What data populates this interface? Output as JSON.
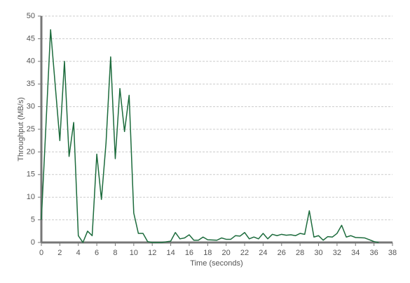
{
  "chart_data": {
    "type": "line",
    "x_label": "Time (seconds)",
    "y_label": "Throughput (MB/s)",
    "x": [
      0,
      1,
      2,
      2.5,
      3,
      3.5,
      4,
      4.5,
      5,
      5.5,
      6,
      6.5,
      7,
      7.5,
      8,
      8.5,
      9,
      9.5,
      10,
      10.5,
      11,
      11.5,
      12,
      13,
      14,
      14.5,
      15,
      15.5,
      16,
      16.5,
      17,
      17.5,
      18,
      19,
      19.5,
      20,
      20.5,
      21,
      21.5,
      22,
      22.5,
      23,
      23.5,
      24,
      24.5,
      25,
      25.5,
      26,
      26.5,
      27,
      27.5,
      28,
      28.5,
      29,
      29.5,
      30,
      30.5,
      31,
      31.5,
      32,
      32.5,
      33,
      33.5,
      34,
      35,
      35.5,
      36,
      36.5
    ],
    "values": [
      5,
      47,
      22.5,
      40,
      19,
      26.5,
      1.5,
      0,
      2.5,
      1.5,
      19.5,
      9.5,
      22,
      41,
      18.5,
      34,
      24.5,
      32.5,
      6.5,
      2,
      2,
      0.2,
      0,
      0,
      0.3,
      2.2,
      0.8,
      1,
      1.7,
      0.5,
      0.5,
      1.2,
      0.6,
      0.5,
      1,
      0.7,
      0.7,
      1.5,
      1.4,
      2.2,
      0.8,
      1.2,
      0.8,
      2,
      0.8,
      1.8,
      1.5,
      1.8,
      1.6,
      1.7,
      1.5,
      2,
      1.8,
      7,
      1.2,
      1.5,
      0.5,
      1.3,
      1.2,
      2,
      3.8,
      1.2,
      1.5,
      1.1,
      1,
      0.6,
      0.2,
      0
    ],
    "color": "#1c6b3c",
    "xlim": [
      0,
      38
    ],
    "xticks": [
      0,
      2,
      4,
      6,
      8,
      10,
      12,
      14,
      16,
      18,
      20,
      22,
      24,
      26,
      28,
      30,
      32,
      34,
      36,
      38
    ],
    "ylim": [
      0,
      50
    ],
    "yticks": [
      0,
      5,
      10,
      15,
      20,
      25,
      30,
      35,
      40,
      45,
      50
    ],
    "grid": true
  }
}
